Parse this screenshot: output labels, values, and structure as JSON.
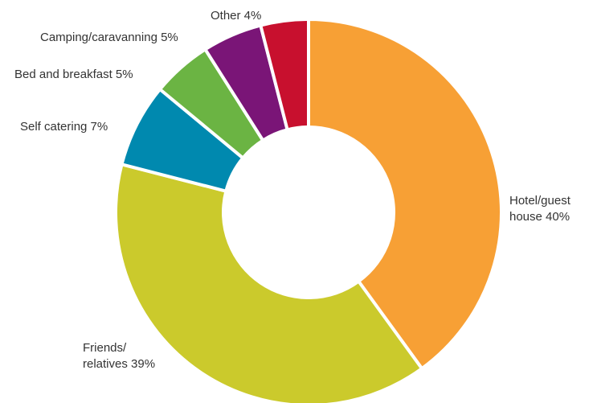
{
  "chart_data": {
    "type": "pie",
    "donut": true,
    "title": "",
    "slices": [
      {
        "label": "Hotel/guest house",
        "label_lines": [
          "Hotel/guest",
          "house 40%"
        ],
        "value": 40,
        "color": "#F7A035"
      },
      {
        "label": "Friends/relatives",
        "label_lines": [
          "Friends/",
          "relatives 39%"
        ],
        "value": 39,
        "color": "#CBCA2C"
      },
      {
        "label": "Self catering",
        "label_lines": [
          "Self catering 7%"
        ],
        "value": 7,
        "color": "#0089AF"
      },
      {
        "label": "Bed and breakfast",
        "label_lines": [
          "Bed and breakfast 5%"
        ],
        "value": 5,
        "color": "#6BB443"
      },
      {
        "label": "Camping/caravanning",
        "label_lines": [
          "Camping/caravanning 5%"
        ],
        "value": 5,
        "color": "#7A1577"
      },
      {
        "label": "Other",
        "label_lines": [
          "Other 4%"
        ],
        "value": 4,
        "color": "#C8102E"
      }
    ],
    "start": "12 o'clock",
    "direction": "clockwise",
    "legend": "none"
  }
}
